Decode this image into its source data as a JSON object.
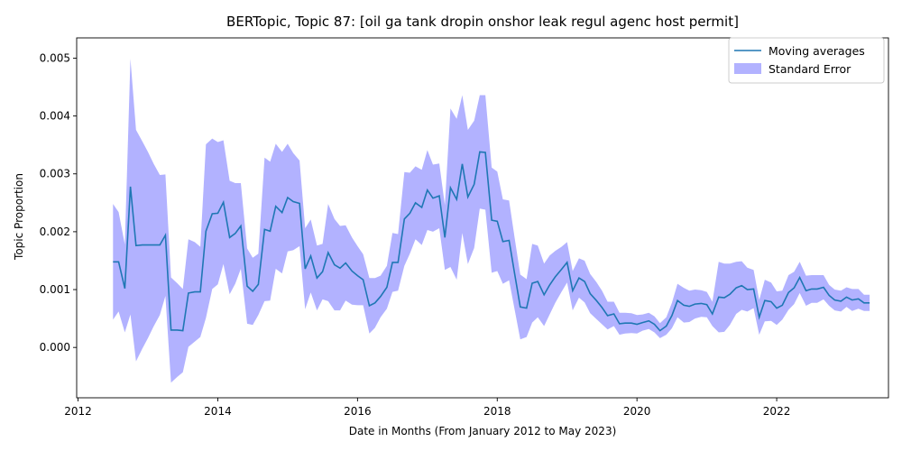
{
  "chart_data": {
    "type": "line",
    "title": "BERTopic, Topic 87: [oil ga tank dropin onshor leak regul agenc host permit]",
    "xlabel": "Date in Months (From January 2012 to May 2023)",
    "ylabel": "Topic Proportion",
    "xlim": [
      2011.98,
      2023.6
    ],
    "ylim": [
      -0.00087,
      0.00535
    ],
    "xticks": [
      2012,
      2014,
      2016,
      2018,
      2020,
      2022
    ],
    "xtick_labels": [
      "2012",
      "2014",
      "2016",
      "2018",
      "2020",
      "2022"
    ],
    "yticks": [
      0.0,
      0.001,
      0.002,
      0.003,
      0.004,
      0.005
    ],
    "ytick_labels": [
      "0.000",
      "0.001",
      "0.002",
      "0.003",
      "0.004",
      "0.005"
    ],
    "grid": false,
    "legend_position": "top-right",
    "series": [
      {
        "name": "Moving averages",
        "kind": "line",
        "color": "#1f77b4",
        "x": [
          2012.5,
          2012.58,
          2012.67,
          2012.75,
          2012.83,
          2012.92,
          2013.0,
          2013.08,
          2013.17,
          2013.25,
          2013.33,
          2013.42,
          2013.5,
          2013.58,
          2013.67,
          2013.75,
          2013.83,
          2013.92,
          2014.0,
          2014.08,
          2014.17,
          2014.25,
          2014.33,
          2014.42,
          2014.5,
          2014.58,
          2014.67,
          2014.75,
          2014.83,
          2014.92,
          2015.0,
          2015.08,
          2015.17,
          2015.25,
          2015.33,
          2015.42,
          2015.5,
          2015.58,
          2015.67,
          2015.75,
          2015.83,
          2015.92,
          2016.0,
          2016.08,
          2016.17,
          2016.25,
          2016.33,
          2016.42,
          2016.5,
          2016.58,
          2016.67,
          2016.75,
          2016.83,
          2016.92,
          2017.0,
          2017.08,
          2017.17,
          2017.25,
          2017.33,
          2017.42,
          2017.5,
          2017.58,
          2017.67,
          2017.75,
          2017.83,
          2017.92,
          2018.0,
          2018.08,
          2018.17,
          2018.25,
          2018.33,
          2018.42,
          2018.5,
          2018.58,
          2018.67,
          2018.75,
          2018.83,
          2018.92,
          2019.0,
          2019.08,
          2019.17,
          2019.25,
          2019.33,
          2019.42,
          2019.5,
          2019.58,
          2019.67,
          2019.75,
          2019.83,
          2019.92,
          2020.0,
          2020.08,
          2020.17,
          2020.25,
          2020.33,
          2020.42,
          2020.5,
          2020.58,
          2020.67,
          2020.75,
          2020.83,
          2020.92,
          2021.0,
          2021.08,
          2021.17,
          2021.25,
          2021.33,
          2021.42,
          2021.5,
          2021.58,
          2021.67,
          2021.75,
          2021.83,
          2021.92,
          2022.0,
          2022.08,
          2022.17,
          2022.25,
          2022.33,
          2022.42,
          2022.5,
          2022.58,
          2022.67,
          2022.75,
          2022.83,
          2022.92,
          2023.0,
          2023.08,
          2023.17,
          2023.25,
          2023.33
        ],
        "y": [
          0.00148,
          0.00148,
          0.00102,
          0.00278,
          0.00176,
          0.00177,
          0.00177,
          0.00177,
          0.00177,
          0.00194,
          0.0003,
          0.0003,
          0.00029,
          0.00094,
          0.00096,
          0.00096,
          0.00201,
          0.00231,
          0.00232,
          0.00251,
          0.0019,
          0.00197,
          0.0021,
          0.00106,
          0.00097,
          0.00109,
          0.00204,
          0.00201,
          0.00244,
          0.00233,
          0.00259,
          0.00252,
          0.00249,
          0.00136,
          0.00158,
          0.0012,
          0.00131,
          0.00164,
          0.00143,
          0.00137,
          0.00146,
          0.00132,
          0.00124,
          0.00117,
          0.00072,
          0.00077,
          0.00088,
          0.00104,
          0.00147,
          0.00147,
          0.00222,
          0.00232,
          0.0025,
          0.00242,
          0.00272,
          0.00258,
          0.00262,
          0.0019,
          0.00276,
          0.00256,
          0.00317,
          0.0026,
          0.00282,
          0.00338,
          0.00337,
          0.0022,
          0.00218,
          0.00183,
          0.00185,
          0.00127,
          0.0007,
          0.00068,
          0.00111,
          0.00114,
          0.00091,
          0.00108,
          0.00122,
          0.00135,
          0.00147,
          0.00098,
          0.0012,
          0.00114,
          0.00093,
          0.00081,
          0.00069,
          0.00055,
          0.00058,
          0.00041,
          0.00042,
          0.00042,
          0.0004,
          0.00043,
          0.00046,
          0.0004,
          0.00029,
          0.00037,
          0.00055,
          0.00081,
          0.00073,
          0.00071,
          0.00075,
          0.00076,
          0.00074,
          0.00058,
          0.00087,
          0.00086,
          0.00092,
          0.00103,
          0.00107,
          0.001,
          0.00101,
          0.00052,
          0.00081,
          0.00079,
          0.00068,
          0.00073,
          0.00095,
          0.00103,
          0.00121,
          0.00098,
          0.00101,
          0.00101,
          0.00104,
          0.0009,
          0.00082,
          0.0008,
          0.00087,
          0.00082,
          0.00084,
          0.00077,
          0.00077
        ]
      },
      {
        "name": "Standard Error",
        "kind": "band",
        "color": "#0000ff",
        "opacity": 0.3,
        "upper": [
          0.00248,
          0.00234,
          0.00178,
          0.00499,
          0.00376,
          0.00356,
          0.00338,
          0.00318,
          0.00298,
          0.00299,
          0.00121,
          0.00111,
          0.00101,
          0.00187,
          0.00182,
          0.00174,
          0.00351,
          0.00361,
          0.00355,
          0.00358,
          0.00288,
          0.00284,
          0.00284,
          0.00171,
          0.00155,
          0.00162,
          0.00328,
          0.00321,
          0.00352,
          0.00338,
          0.00352,
          0.00336,
          0.00323,
          0.00206,
          0.00221,
          0.00176,
          0.00179,
          0.00248,
          0.00222,
          0.0021,
          0.00211,
          0.0019,
          0.00175,
          0.00161,
          0.0012,
          0.0012,
          0.00124,
          0.00141,
          0.00198,
          0.00196,
          0.00303,
          0.00302,
          0.00313,
          0.00307,
          0.00341,
          0.00316,
          0.00318,
          0.00246,
          0.00413,
          0.00395,
          0.00436,
          0.00376,
          0.00392,
          0.00436,
          0.00436,
          0.00311,
          0.00304,
          0.00256,
          0.00254,
          0.00189,
          0.00126,
          0.00118,
          0.00179,
          0.00176,
          0.00145,
          0.00159,
          0.00167,
          0.00174,
          0.00182,
          0.00132,
          0.00154,
          0.0015,
          0.00127,
          0.00113,
          0.00098,
          0.00079,
          0.00079,
          0.0006,
          0.0006,
          0.00059,
          0.00056,
          0.00057,
          0.0006,
          0.00054,
          0.00042,
          0.00052,
          0.00077,
          0.0011,
          0.00103,
          0.00098,
          0.001,
          0.00099,
          0.00096,
          0.00079,
          0.00148,
          0.00145,
          0.00145,
          0.00148,
          0.00149,
          0.00138,
          0.00134,
          0.00082,
          0.00117,
          0.00112,
          0.00097,
          0.00098,
          0.00125,
          0.00131,
          0.00148,
          0.00124,
          0.00125,
          0.00125,
          0.00125,
          0.00108,
          0.001,
          0.00098,
          0.00104,
          0.00101,
          0.00101,
          0.00091,
          0.00091
        ],
        "lower": [
          0.00048,
          0.00062,
          0.00026,
          0.00057,
          -0.00024,
          -2e-05,
          0.00016,
          0.00036,
          0.00056,
          0.00089,
          -0.00061,
          -0.00051,
          -0.00043,
          1e-05,
          0.0001,
          0.00018,
          0.00051,
          0.00101,
          0.00109,
          0.00144,
          0.00092,
          0.0011,
          0.00136,
          0.00041,
          0.00039,
          0.00056,
          0.0008,
          0.00081,
          0.00136,
          0.00128,
          0.00166,
          0.00168,
          0.00175,
          0.00066,
          0.00095,
          0.00064,
          0.00083,
          0.0008,
          0.00064,
          0.00064,
          0.00081,
          0.00074,
          0.00073,
          0.00073,
          0.00024,
          0.00034,
          0.00052,
          0.00067,
          0.00096,
          0.00098,
          0.00141,
          0.00162,
          0.00187,
          0.00177,
          0.00203,
          0.002,
          0.00206,
          0.00134,
          0.00139,
          0.00117,
          0.00198,
          0.00144,
          0.00172,
          0.0024,
          0.00238,
          0.00129,
          0.00132,
          0.0011,
          0.00116,
          0.00065,
          0.00014,
          0.00018,
          0.00043,
          0.00052,
          0.00037,
          0.00057,
          0.00077,
          0.00096,
          0.00112,
          0.00064,
          0.00086,
          0.00078,
          0.00059,
          0.00049,
          0.0004,
          0.00031,
          0.00037,
          0.00022,
          0.00024,
          0.00025,
          0.00024,
          0.00029,
          0.00032,
          0.00026,
          0.00016,
          0.00022,
          0.00033,
          0.00052,
          0.00043,
          0.00044,
          0.0005,
          0.00053,
          0.00052,
          0.00037,
          0.00026,
          0.00027,
          0.00039,
          0.00058,
          0.00065,
          0.00062,
          0.00068,
          0.00022,
          0.00045,
          0.00046,
          0.00039,
          0.00048,
          0.00065,
          0.00075,
          0.00094,
          0.00072,
          0.00077,
          0.00077,
          0.00083,
          0.00072,
          0.00064,
          0.00062,
          0.0007,
          0.00063,
          0.00067,
          0.00063,
          0.00063
        ]
      }
    ]
  }
}
